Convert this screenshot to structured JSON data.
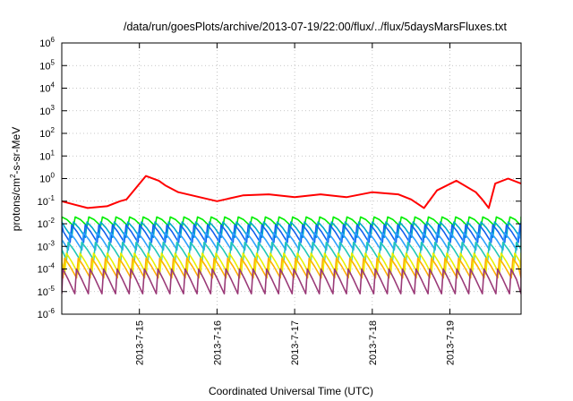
{
  "chart_data": {
    "type": "line",
    "title": "/data/run/goesPlots/archive/2013-07-19/22:00/flux/../flux/5daysMarsFluxes.txt",
    "xlabel": "Coordinated Universal Time (UTC)",
    "ylabel": "protons/cm2-s-sr-MeV",
    "ylabel_parts": {
      "pre": "protons/cm",
      "sup": "2",
      "post": "-s-sr-MeV"
    },
    "y_scale": "log",
    "y_tick_base": "10",
    "ylim": [
      1e-06,
      1000000.0
    ],
    "y_tick_exponents": [
      "-6",
      "-5",
      "-4",
      "-3",
      "-2",
      "-1",
      "0",
      "1",
      "2",
      "3",
      "4",
      "5",
      "6"
    ],
    "xlim": [
      "2013-07-14T00:00",
      "2013-07-19T22:00"
    ],
    "x_ticks": [
      "2013-7-15",
      "2013-7-16",
      "2013-7-17",
      "2013-7-18",
      "2013-7-19"
    ],
    "grid": true,
    "legend": "none",
    "series": [
      {
        "color": "#ff0000",
        "x": [
          "2013-07-14T00:00",
          "2013-07-14T04:00",
          "2013-07-14T08:00",
          "2013-07-14T14:00",
          "2013-07-14T18:00",
          "2013-07-14T20:00",
          "2013-07-15T02:00",
          "2013-07-15T06:00",
          "2013-07-15T08:00",
          "2013-07-15T12:00",
          "2013-07-16T00:00",
          "2013-07-16T08:00",
          "2013-07-16T16:00",
          "2013-07-17T00:00",
          "2013-07-17T08:00",
          "2013-07-17T16:00",
          "2013-07-18T00:00",
          "2013-07-18T08:00",
          "2013-07-18T12:00",
          "2013-07-18T16:00",
          "2013-07-18T20:00",
          "2013-07-19T02:00",
          "2013-07-19T08:00",
          "2013-07-19T10:00",
          "2013-07-19T12:00",
          "2013-07-19T14:00",
          "2013-07-19T18:00",
          "2013-07-19T22:00"
        ],
        "y": [
          0.1,
          0.07,
          0.05,
          0.06,
          0.1,
          0.12,
          1.3,
          0.8,
          0.5,
          0.25,
          0.1,
          0.18,
          0.2,
          0.15,
          0.2,
          0.15,
          0.25,
          0.2,
          0.12,
          0.05,
          0.3,
          0.8,
          0.25,
          0.12,
          0.05,
          0.6,
          1.0,
          0.6
        ]
      },
      {
        "color": "#00ee00",
        "peak": 0.02,
        "trough": 0.008
      },
      {
        "color": "#00a8c8",
        "peak": 0.012,
        "trough": 0.0025
      },
      {
        "color": "#1060ee",
        "peak": 0.009,
        "trough": 0.0015
      },
      {
        "color": "#2f9fff",
        "peak": 0.004,
        "trough": 0.0007
      },
      {
        "color": "#22c8b8",
        "peak": 0.0015,
        "trough": 0.00025
      },
      {
        "color": "#e8f000",
        "peak": 0.0005,
        "trough": 6e-05
      },
      {
        "color": "#ffb000",
        "peak": 0.0003,
        "trough": 4e-05
      },
      {
        "color": "#9a3a78",
        "peak": 0.0001,
        "trough": 8e-06
      }
    ]
  }
}
